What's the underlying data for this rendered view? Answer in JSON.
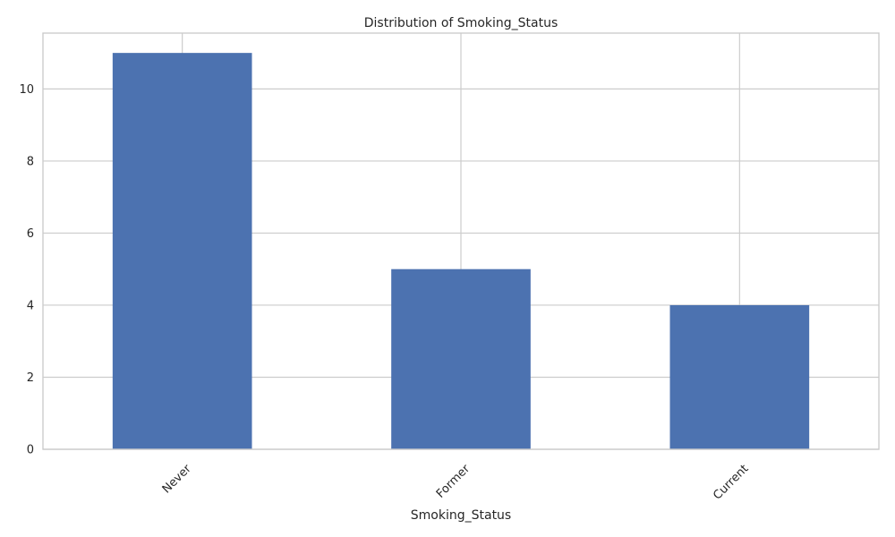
{
  "chart_data": {
    "type": "bar",
    "title": "Distribution of Smoking_Status",
    "xlabel": "Smoking_Status",
    "ylabel": "",
    "categories": [
      "Never",
      "Former",
      "Current"
    ],
    "values": [
      11,
      5,
      4
    ],
    "ylim": [
      0,
      11.55
    ],
    "yticks": [
      0,
      2,
      4,
      6,
      8,
      10
    ],
    "grid": true,
    "bar_color": "#4c72b0",
    "grid_color": "#cccccc",
    "xtick_rotation_deg": 45
  }
}
